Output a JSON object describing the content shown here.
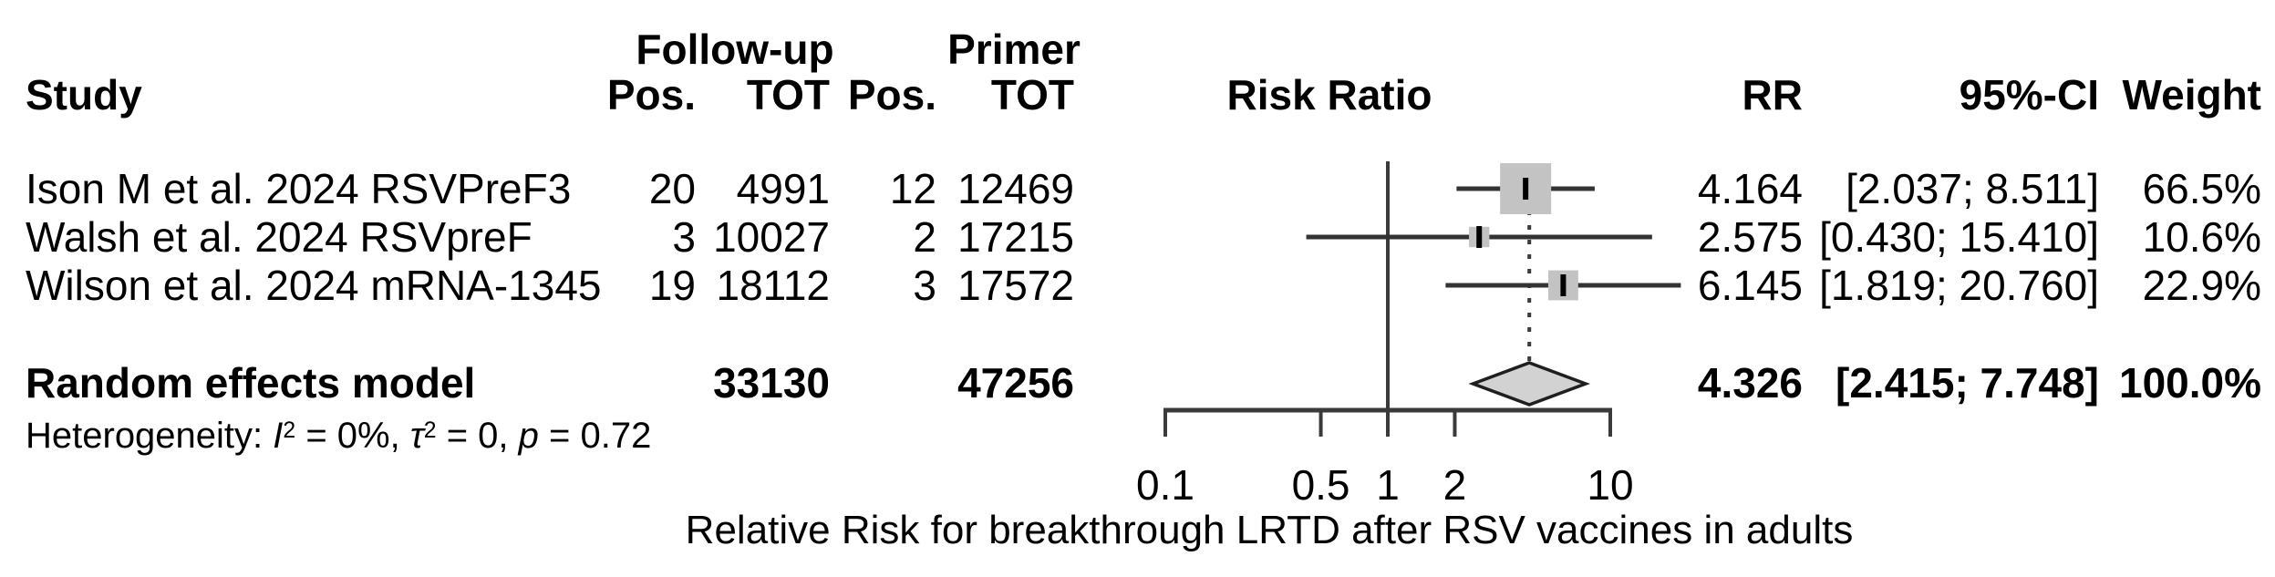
{
  "table": {
    "study_header": "Study",
    "group_header_followup": "Follow-up",
    "group_header_primer": "Primer",
    "col_pos_followup": "Pos.",
    "col_tot_followup": "TOT",
    "col_pos_primer": "Pos.",
    "col_tot_primer": "TOT",
    "col_rr": "RR",
    "col_ci": "95%-CI",
    "col_weight": "Weight",
    "plot_title": "Risk Ratio",
    "rows": [
      {
        "study": "Ison M et al. 2024 RSVPreF3",
        "fu_pos": "20",
        "fu_tot": "4991",
        "pr_pos": "12",
        "pr_tot": "12469",
        "rr": "4.164",
        "ci": "[2.037; 8.511]",
        "weight": "66.5%"
      },
      {
        "study": "Walsh et al. 2024 RSVpreF",
        "fu_pos": "3",
        "fu_tot": "10027",
        "pr_pos": "2",
        "pr_tot": "17215",
        "rr": "2.575",
        "ci": "[0.430; 15.410]",
        "weight": "10.6%"
      },
      {
        "study": "Wilson et al. 2024 mRNA-1345",
        "fu_pos": "19",
        "fu_tot": "18112",
        "pr_pos": "3",
        "pr_tot": "17572",
        "rr": "6.145",
        "ci": "[1.819; 20.760]",
        "weight": "22.9%"
      }
    ],
    "pooled": {
      "label": "Random effects model",
      "fu_tot": "33130",
      "pr_tot": "47256",
      "rr": "4.326",
      "ci": "[2.415; 7.748]",
      "weight": "100.0%"
    },
    "heterogeneity": {
      "prefix": "Heterogeneity: ",
      "i_sym": "I",
      "i_sup": "2",
      "seg1": " = 0%, ",
      "tau_sym": "τ",
      "tau_sup": "2",
      "seg2": " = 0, ",
      "p_sym": "p",
      "seg3": " = 0.72"
    }
  },
  "chart_data": {
    "type": "forest",
    "scale": "log10",
    "x_ticks": [
      0.1,
      0.5,
      1,
      2,
      10
    ],
    "x_tick_labels": [
      "0.1",
      "0.5",
      "1",
      "2",
      "10"
    ],
    "xlim": [
      0.1,
      10
    ],
    "ref_line": 1,
    "xlabel": "Relative Risk for breakthrough LRTD after RSV vaccines in adults",
    "studies": [
      {
        "name": "Ison M et al. 2024 RSVPreF3",
        "rr": 4.164,
        "ci_low": 2.037,
        "ci_high": 8.511,
        "weight_pct": 66.5
      },
      {
        "name": "Walsh et al. 2024 RSVpreF",
        "rr": 2.575,
        "ci_low": 0.43,
        "ci_high": 15.41,
        "weight_pct": 10.6
      },
      {
        "name": "Wilson et al. 2024 mRNA-1345",
        "rr": 6.145,
        "ci_low": 1.819,
        "ci_high": 20.76,
        "weight_pct": 22.9
      }
    ],
    "pooled": {
      "name": "Random effects model",
      "rr": 4.326,
      "ci_low": 2.415,
      "ci_high": 7.748,
      "weight_pct": 100.0
    },
    "colors": {
      "square_fill": "#c3c3c3",
      "diamond_fill": "#d2d2d2",
      "diamond_stroke": "#1f1f1f",
      "line": "#333333",
      "axis": "#3a3a3a",
      "text": "#000000"
    }
  }
}
